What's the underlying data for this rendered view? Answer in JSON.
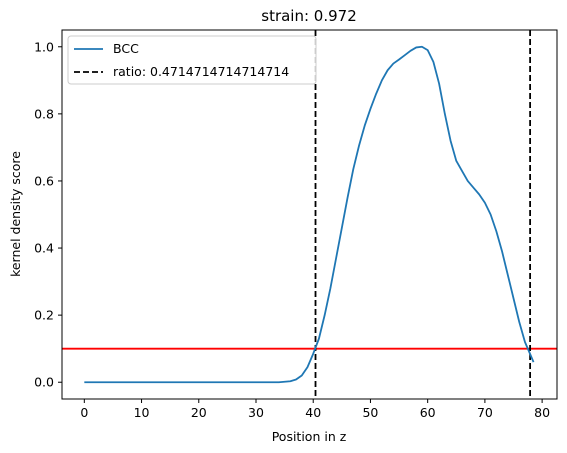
{
  "chart_data": {
    "type": "line",
    "title": "strain: 0.972",
    "xlabel": "Position in z",
    "ylabel": "kernel density score",
    "xlim": [
      -3.9,
      82.6
    ],
    "ylim": [
      -0.05,
      1.05
    ],
    "xticks": [
      0,
      10,
      20,
      30,
      40,
      50,
      60,
      70,
      80
    ],
    "yticks": [
      0.0,
      0.2,
      0.4,
      0.6,
      0.8,
      1.0
    ],
    "ytick_labels": [
      "0.0",
      "0.2",
      "0.4",
      "0.6",
      "0.8",
      "1.0"
    ],
    "grid": false,
    "legend_position": "upper-left",
    "series": [
      {
        "name": "BCC",
        "color": "#1f77b4",
        "x": [
          0,
          5,
          10,
          15,
          20,
          25,
          30,
          34,
          36,
          37,
          38,
          39,
          40,
          41,
          42,
          43,
          44,
          45,
          46,
          47,
          48,
          49,
          50,
          51,
          52,
          53,
          54,
          55,
          56,
          57,
          58,
          59,
          60,
          61,
          62,
          63,
          64,
          65,
          66,
          67,
          68,
          69,
          70,
          71,
          72,
          73,
          74,
          75,
          76,
          77,
          78,
          78.5
        ],
        "y": [
          0.0,
          0.0,
          0.0,
          0.0,
          0.0,
          0.0,
          0.0,
          0.0,
          0.003,
          0.008,
          0.02,
          0.045,
          0.085,
          0.13,
          0.2,
          0.28,
          0.37,
          0.46,
          0.55,
          0.635,
          0.705,
          0.765,
          0.815,
          0.86,
          0.9,
          0.93,
          0.95,
          0.962,
          0.975,
          0.988,
          0.998,
          1.0,
          0.99,
          0.955,
          0.89,
          0.8,
          0.72,
          0.66,
          0.63,
          0.6,
          0.58,
          0.56,
          0.535,
          0.5,
          0.45,
          0.39,
          0.32,
          0.25,
          0.18,
          0.12,
          0.08,
          0.06
        ]
      }
    ],
    "vlines": {
      "label": "ratio: 0.4714714714714714",
      "color": "#000000",
      "x": [
        40.4,
        77.9
      ]
    },
    "hline": {
      "color": "#ff0000",
      "y": 0.1
    }
  }
}
